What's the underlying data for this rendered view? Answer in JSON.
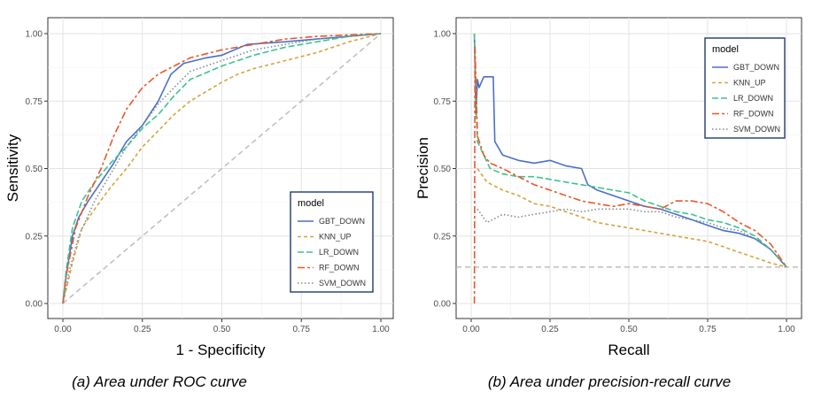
{
  "colors": {
    "GBT_DOWN": "#4a6fca",
    "KNN_UP": "#d9a23b",
    "LR_DOWN": "#3cc48a",
    "RF_DOWN": "#e8572a",
    "SVM_DOWN": "#7f8c95",
    "legend_border": "#1f3a6e",
    "reference": "#bdbdbd"
  },
  "chart_data": [
    {
      "type": "line",
      "caption": "(a) Area under ROC curve",
      "xlabel": "1 - Specificity",
      "ylabel": "Sensitivity",
      "xlim": [
        -0.03,
        1.03
      ],
      "ylim": [
        -0.03,
        1.03
      ],
      "xticks": [
        "0.00",
        "0.25",
        "0.50",
        "0.75",
        "1.00"
      ],
      "yticks": [
        "0.00",
        "0.25",
        "0.50",
        "0.75",
        "1.00"
      ],
      "grid": true,
      "legend": {
        "title": "model",
        "position": "bottom-right"
      },
      "reference_line": {
        "from": [
          0,
          0
        ],
        "to": [
          1,
          1
        ],
        "style": "dashed"
      },
      "series": [
        {
          "name": "GBT_DOWN",
          "dash": "solid",
          "points": [
            [
              0,
              0
            ],
            [
              0.01,
              0.1
            ],
            [
              0.03,
              0.25
            ],
            [
              0.05,
              0.32
            ],
            [
              0.08,
              0.38
            ],
            [
              0.12,
              0.45
            ],
            [
              0.16,
              0.52
            ],
            [
              0.2,
              0.6
            ],
            [
              0.25,
              0.66
            ],
            [
              0.3,
              0.75
            ],
            [
              0.34,
              0.85
            ],
            [
              0.38,
              0.89
            ],
            [
              0.45,
              0.91
            ],
            [
              0.5,
              0.92
            ],
            [
              0.58,
              0.96
            ],
            [
              0.7,
              0.97
            ],
            [
              0.8,
              0.98
            ],
            [
              0.9,
              0.99
            ],
            [
              1,
              1
            ]
          ]
        },
        {
          "name": "KNN_UP",
          "dash": "dashed",
          "points": [
            [
              0,
              0
            ],
            [
              0.03,
              0.15
            ],
            [
              0.06,
              0.28
            ],
            [
              0.1,
              0.35
            ],
            [
              0.15,
              0.43
            ],
            [
              0.2,
              0.5
            ],
            [
              0.25,
              0.58
            ],
            [
              0.3,
              0.64
            ],
            [
              0.35,
              0.7
            ],
            [
              0.4,
              0.75
            ],
            [
              0.5,
              0.82
            ],
            [
              0.55,
              0.85
            ],
            [
              0.6,
              0.87
            ],
            [
              0.7,
              0.9
            ],
            [
              0.8,
              0.93
            ],
            [
              0.9,
              0.97
            ],
            [
              1,
              1
            ]
          ]
        },
        {
          "name": "LR_DOWN",
          "dash": "longdash",
          "points": [
            [
              0,
              0
            ],
            [
              0.01,
              0.12
            ],
            [
              0.03,
              0.28
            ],
            [
              0.06,
              0.38
            ],
            [
              0.1,
              0.45
            ],
            [
              0.15,
              0.52
            ],
            [
              0.2,
              0.58
            ],
            [
              0.25,
              0.65
            ],
            [
              0.3,
              0.7
            ],
            [
              0.35,
              0.77
            ],
            [
              0.4,
              0.83
            ],
            [
              0.5,
              0.88
            ],
            [
              0.6,
              0.92
            ],
            [
              0.7,
              0.95
            ],
            [
              0.8,
              0.97
            ],
            [
              0.9,
              0.99
            ],
            [
              1,
              1
            ]
          ]
        },
        {
          "name": "RF_DOWN",
          "dash": "twodash",
          "points": [
            [
              0,
              0
            ],
            [
              0.01,
              0.1
            ],
            [
              0.04,
              0.28
            ],
            [
              0.08,
              0.4
            ],
            [
              0.12,
              0.5
            ],
            [
              0.16,
              0.62
            ],
            [
              0.2,
              0.72
            ],
            [
              0.25,
              0.8
            ],
            [
              0.3,
              0.85
            ],
            [
              0.35,
              0.88
            ],
            [
              0.4,
              0.91
            ],
            [
              0.5,
              0.94
            ],
            [
              0.6,
              0.96
            ],
            [
              0.7,
              0.98
            ],
            [
              0.8,
              0.99
            ],
            [
              0.9,
              0.995
            ],
            [
              1,
              1
            ]
          ]
        },
        {
          "name": "SVM_DOWN",
          "dash": "dotted",
          "points": [
            [
              0,
              0
            ],
            [
              0.02,
              0.12
            ],
            [
              0.05,
              0.25
            ],
            [
              0.1,
              0.38
            ],
            [
              0.15,
              0.48
            ],
            [
              0.2,
              0.58
            ],
            [
              0.25,
              0.66
            ],
            [
              0.3,
              0.74
            ],
            [
              0.35,
              0.8
            ],
            [
              0.4,
              0.86
            ],
            [
              0.5,
              0.9
            ],
            [
              0.6,
              0.94
            ],
            [
              0.7,
              0.96
            ],
            [
              0.8,
              0.98
            ],
            [
              0.9,
              0.99
            ],
            [
              1,
              1
            ]
          ]
        }
      ]
    },
    {
      "type": "line",
      "caption": "(b) Area under precision-recall curve",
      "xlabel": "Recall",
      "ylabel": "Precision",
      "xlim": [
        -0.03,
        1.03
      ],
      "ylim": [
        -0.03,
        1.03
      ],
      "xticks": [
        "0.00",
        "0.25",
        "0.50",
        "0.75",
        "1.00"
      ],
      "yticks": [
        "0.00",
        "0.25",
        "0.50",
        "0.75",
        "1.00"
      ],
      "grid": true,
      "legend": {
        "title": "model",
        "position": "top-right"
      },
      "reference_line": {
        "y": 0.135,
        "style": "dashed"
      },
      "series": [
        {
          "name": "GBT_DOWN",
          "dash": "solid",
          "points": [
            [
              0.01,
              1
            ],
            [
              0.015,
              0.7
            ],
            [
              0.02,
              0.83
            ],
            [
              0.025,
              0.8
            ],
            [
              0.04,
              0.84
            ],
            [
              0.07,
              0.84
            ],
            [
              0.075,
              0.6
            ],
            [
              0.1,
              0.55
            ],
            [
              0.15,
              0.53
            ],
            [
              0.2,
              0.52
            ],
            [
              0.25,
              0.53
            ],
            [
              0.3,
              0.51
            ],
            [
              0.35,
              0.5
            ],
            [
              0.37,
              0.44
            ],
            [
              0.4,
              0.42
            ],
            [
              0.45,
              0.4
            ],
            [
              0.5,
              0.38
            ],
            [
              0.55,
              0.36
            ],
            [
              0.6,
              0.35
            ],
            [
              0.65,
              0.33
            ],
            [
              0.7,
              0.31
            ],
            [
              0.75,
              0.29
            ],
            [
              0.8,
              0.27
            ],
            [
              0.85,
              0.26
            ],
            [
              0.9,
              0.24
            ],
            [
              0.95,
              0.2
            ],
            [
              1,
              0.135
            ]
          ]
        },
        {
          "name": "KNN_UP",
          "dash": "dashed",
          "points": [
            [
              0.02,
              0.5
            ],
            [
              0.05,
              0.45
            ],
            [
              0.1,
              0.42
            ],
            [
              0.15,
              0.4
            ],
            [
              0.2,
              0.37
            ],
            [
              0.25,
              0.36
            ],
            [
              0.3,
              0.34
            ],
            [
              0.35,
              0.32
            ],
            [
              0.4,
              0.3
            ],
            [
              0.45,
              0.29
            ],
            [
              0.5,
              0.28
            ],
            [
              0.55,
              0.27
            ],
            [
              0.6,
              0.26
            ],
            [
              0.65,
              0.25
            ],
            [
              0.7,
              0.24
            ],
            [
              0.75,
              0.23
            ],
            [
              0.8,
              0.21
            ],
            [
              0.85,
              0.19
            ],
            [
              0.9,
              0.17
            ],
            [
              0.95,
              0.15
            ],
            [
              1,
              0.135
            ]
          ]
        },
        {
          "name": "LR_DOWN",
          "dash": "longdash",
          "points": [
            [
              0.01,
              1
            ],
            [
              0.015,
              0.75
            ],
            [
              0.02,
              0.6
            ],
            [
              0.04,
              0.55
            ],
            [
              0.06,
              0.5
            ],
            [
              0.1,
              0.48
            ],
            [
              0.15,
              0.47
            ],
            [
              0.2,
              0.47
            ],
            [
              0.25,
              0.46
            ],
            [
              0.3,
              0.45
            ],
            [
              0.35,
              0.44
            ],
            [
              0.4,
              0.43
            ],
            [
              0.45,
              0.42
            ],
            [
              0.5,
              0.41
            ],
            [
              0.55,
              0.38
            ],
            [
              0.6,
              0.36
            ],
            [
              0.65,
              0.34
            ],
            [
              0.7,
              0.33
            ],
            [
              0.75,
              0.31
            ],
            [
              0.8,
              0.3
            ],
            [
              0.85,
              0.28
            ],
            [
              0.9,
              0.25
            ],
            [
              0.95,
              0.2
            ],
            [
              1,
              0.135
            ]
          ]
        },
        {
          "name": "RF_DOWN",
          "dash": "twodash",
          "points": [
            [
              0.01,
              0
            ],
            [
              0.012,
              0.95
            ],
            [
              0.02,
              0.62
            ],
            [
              0.04,
              0.55
            ],
            [
              0.06,
              0.52
            ],
            [
              0.1,
              0.5
            ],
            [
              0.15,
              0.47
            ],
            [
              0.2,
              0.44
            ],
            [
              0.25,
              0.42
            ],
            [
              0.3,
              0.4
            ],
            [
              0.35,
              0.38
            ],
            [
              0.4,
              0.37
            ],
            [
              0.45,
              0.36
            ],
            [
              0.5,
              0.37
            ],
            [
              0.55,
              0.36
            ],
            [
              0.6,
              0.35
            ],
            [
              0.65,
              0.38
            ],
            [
              0.7,
              0.38
            ],
            [
              0.75,
              0.37
            ],
            [
              0.8,
              0.34
            ],
            [
              0.85,
              0.3
            ],
            [
              0.9,
              0.27
            ],
            [
              0.95,
              0.22
            ],
            [
              1,
              0.135
            ]
          ]
        },
        {
          "name": "SVM_DOWN",
          "dash": "dotted",
          "points": [
            [
              0.02,
              0.35
            ],
            [
              0.05,
              0.3
            ],
            [
              0.1,
              0.33
            ],
            [
              0.15,
              0.32
            ],
            [
              0.2,
              0.33
            ],
            [
              0.25,
              0.34
            ],
            [
              0.3,
              0.35
            ],
            [
              0.35,
              0.34
            ],
            [
              0.4,
              0.35
            ],
            [
              0.45,
              0.35
            ],
            [
              0.5,
              0.35
            ],
            [
              0.55,
              0.34
            ],
            [
              0.6,
              0.34
            ],
            [
              0.65,
              0.32
            ],
            [
              0.7,
              0.31
            ],
            [
              0.75,
              0.3
            ],
            [
              0.8,
              0.28
            ],
            [
              0.85,
              0.27
            ],
            [
              0.9,
              0.24
            ],
            [
              0.95,
              0.2
            ],
            [
              1,
              0.135
            ]
          ]
        }
      ]
    }
  ]
}
